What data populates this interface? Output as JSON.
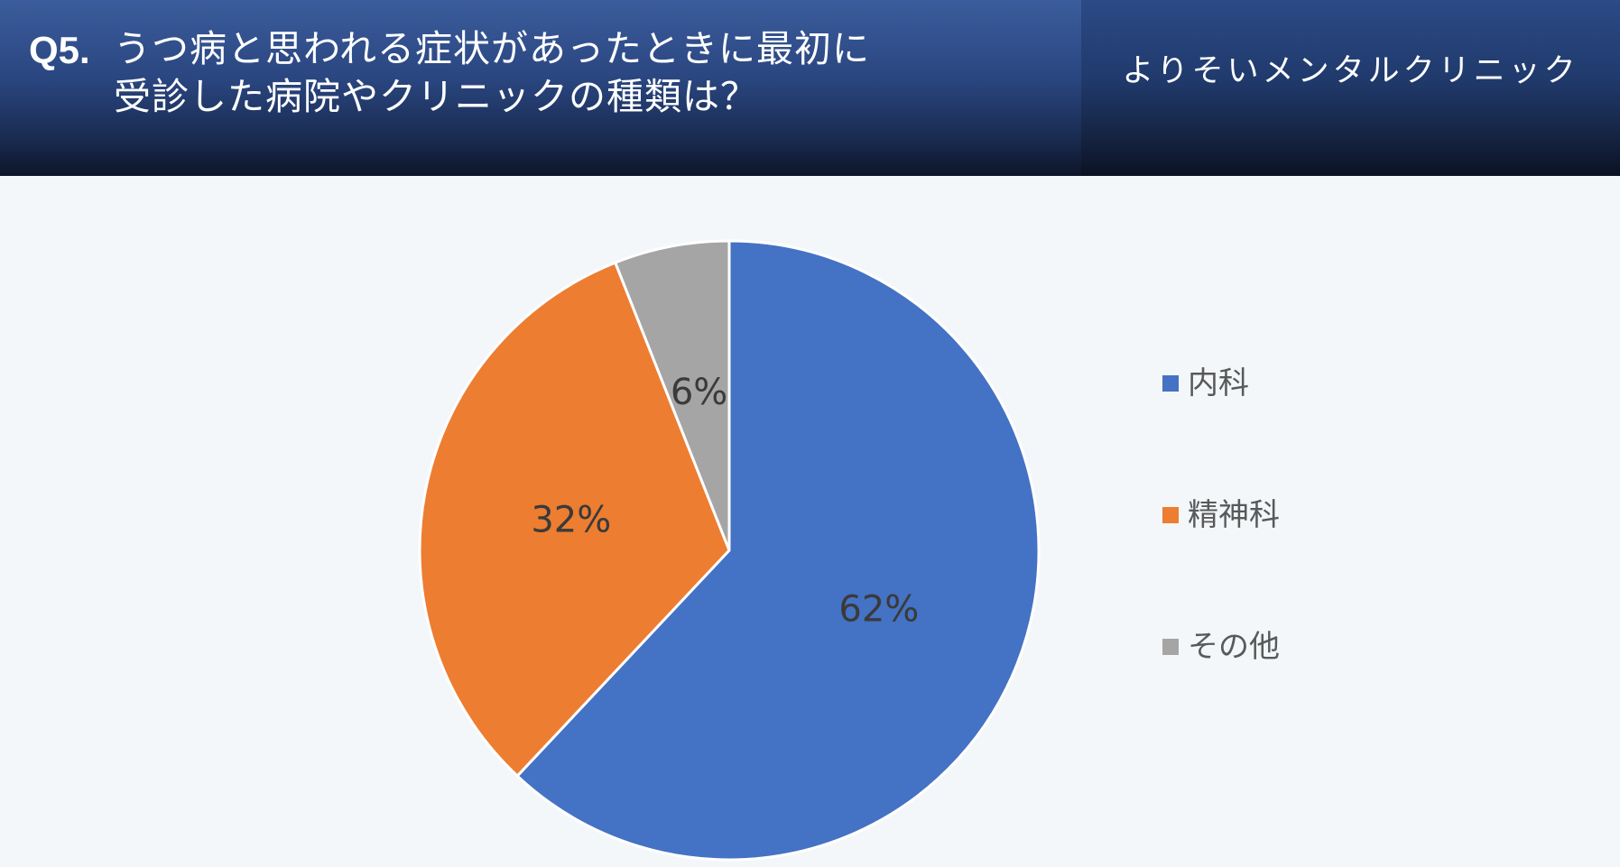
{
  "header": {
    "question_number": "Q5.",
    "title": "うつ病と思われる症状があったときに最初に\n受診した病院やクリニックの種類は？",
    "clinic_name": "よりそいメンタルクリニック"
  },
  "colors": {
    "header_bg": "#2a4680",
    "page_bg": "#f3f7fa",
    "series_blue": "#4472c4",
    "series_orange": "#ed7d31",
    "series_gray": "#a5a5a5"
  },
  "chart_data": {
    "type": "pie",
    "title": "",
    "categories": [
      "内科",
      "精神科",
      "その他"
    ],
    "values": [
      62,
      32,
      6
    ],
    "value_labels": [
      "62%",
      "32%",
      "6%"
    ],
    "colors": [
      "#4472c4",
      "#ed7d31",
      "#a5a5a5"
    ],
    "start_angle": "12 o'clock",
    "direction": "clockwise",
    "legend_position": "right"
  }
}
